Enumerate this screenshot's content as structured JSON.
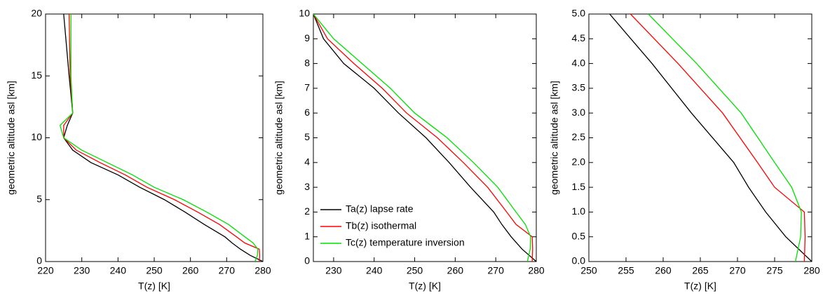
{
  "chart_data": [
    {
      "type": "line",
      "xlabel": "T(z) [K]",
      "ylabel": "geometric altitude asl [km]",
      "xlim": [
        220,
        280
      ],
      "xticks": [
        220,
        230,
        240,
        250,
        260,
        270,
        280
      ],
      "ylim": [
        0,
        20
      ],
      "yticks": [
        0,
        5,
        10,
        15,
        20
      ],
      "y": [
        0,
        0.5,
        1,
        1.5,
        2,
        3,
        4,
        5,
        6,
        7,
        8,
        9,
        10,
        11,
        12,
        15,
        20
      ],
      "series": [
        {
          "name": "Ta(z) lapse rate",
          "color": "#000000",
          "x": [
            280,
            276.5,
            273.8,
            271.5,
            269.5,
            263.8,
            258.5,
            252.8,
            246,
            240,
            232.5,
            227.5,
            225,
            226,
            227.5,
            226.5,
            225
          ]
        },
        {
          "name": "Tb(z) isothermal",
          "color": "#ff0000",
          "x": [
            279,
            279.1,
            279,
            275,
            272.7,
            268,
            262,
            255.6,
            248,
            242,
            235,
            228.5,
            225,
            225,
            227.5,
            226.8,
            226.5
          ]
        },
        {
          "name": "Tc(z) temperature inversion",
          "color": "#00e000",
          "x": [
            277.8,
            278.5,
            278.6,
            277.3,
            275,
            270.5,
            264.5,
            258,
            250,
            244,
            237,
            230,
            225,
            224,
            227.5,
            227,
            227
          ]
        }
      ]
    },
    {
      "type": "line",
      "xlabel": "T(z) [K]",
      "ylabel": "geometric altitude asl [km]",
      "legend": "lower left",
      "xlim": [
        225,
        280
      ],
      "xticks": [
        230,
        240,
        250,
        260,
        270,
        280
      ],
      "ylim": [
        0,
        10
      ],
      "yticks": [
        0,
        1,
        2,
        3,
        4,
        5,
        6,
        7,
        8,
        9,
        10
      ],
      "y": [
        0,
        0.5,
        1,
        1.5,
        2,
        3,
        4,
        5,
        6,
        7,
        8,
        9,
        10
      ],
      "series": [
        {
          "name": "Ta(z) lapse rate",
          "color": "#000000",
          "x": [
            280,
            276.5,
            273.8,
            271.5,
            269.5,
            263.8,
            258.5,
            252.8,
            246,
            240,
            232.5,
            227.5,
            225
          ]
        },
        {
          "name": "Tb(z) isothermal",
          "color": "#ff0000",
          "x": [
            279,
            279.1,
            279,
            275,
            272.7,
            268,
            262,
            255.6,
            248,
            242,
            235,
            228.5,
            225
          ]
        },
        {
          "name": "Tc(z) temperature inversion",
          "color": "#00e000",
          "x": [
            277.8,
            278.5,
            278.6,
            277.3,
            275,
            270.5,
            264.5,
            258,
            250,
            244,
            237,
            230,
            225
          ]
        }
      ]
    },
    {
      "type": "line",
      "xlabel": "T(z) [K]",
      "ylabel": "geometric altitude asl [km]",
      "xlim": [
        250,
        280
      ],
      "xticks": [
        250,
        255,
        260,
        265,
        270,
        275,
        280
      ],
      "ylim": [
        0,
        5
      ],
      "yticks": [
        {
          "value": 0,
          "label": "0.0"
        },
        0.5,
        {
          "value": 1,
          "label": "1.0"
        },
        1.5,
        {
          "value": 2,
          "label": "2.0"
        },
        2.5,
        {
          "value": 3,
          "label": "3.0"
        },
        3.5,
        {
          "value": 4,
          "label": "4.0"
        },
        4.5,
        {
          "value": 5,
          "label": "5.0"
        }
      ],
      "y": [
        0,
        0.5,
        1,
        1.5,
        2,
        3,
        4,
        5
      ],
      "series": [
        {
          "name": "Ta(z) lapse rate",
          "color": "#000000",
          "x": [
            280,
            276.5,
            273.8,
            271.5,
            269.5,
            263.8,
            258.5,
            252.8
          ]
        },
        {
          "name": "Tb(z) isothermal",
          "color": "#ff0000",
          "x": [
            279,
            279.1,
            279,
            275,
            272.7,
            268,
            262,
            255.6
          ]
        },
        {
          "name": "Tc(z) temperature inversion",
          "color": "#00e000",
          "x": [
            277.8,
            278.5,
            278.6,
            277.3,
            275,
            270.5,
            264.5,
            258
          ]
        }
      ]
    }
  ]
}
